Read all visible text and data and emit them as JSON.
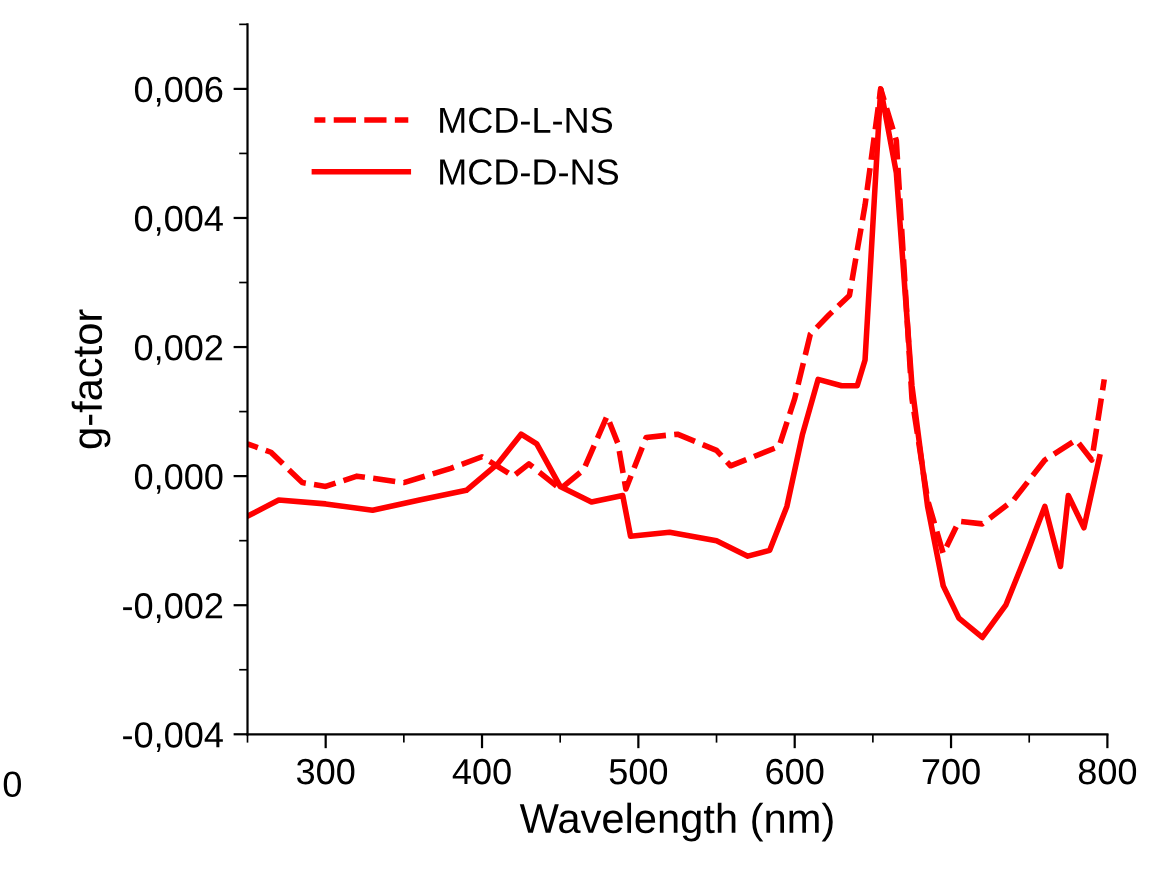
{
  "chart_data": {
    "type": "line",
    "xlabel": "Wavelength (nm)",
    "ylabel": "g-factor",
    "xlim": [
      250,
      800
    ],
    "xticks": [
      300,
      400,
      500,
      600,
      700,
      800
    ],
    "ylim": [
      -0.004,
      0.007
    ],
    "yticks": [
      {
        "value": -0.004,
        "label": "-0,004"
      },
      {
        "value": -0.002,
        "label": "-0,002"
      },
      {
        "value": 0,
        "label": "0,000"
      },
      {
        "value": 0.002,
        "label": "0,002"
      },
      {
        "value": 0.004,
        "label": "0,004"
      },
      {
        "value": 0.006,
        "label": "0,006"
      }
    ],
    "legend": "top left",
    "grid": false,
    "marker": "none",
    "annotations": [
      "0"
    ],
    "series": [
      {
        "name": "MCD-L-NS",
        "color": "#ff0000",
        "line_style": "dashed",
        "x": [
          250,
          265,
          285,
          300,
          320,
          350,
          380,
          400,
          420,
          430,
          450,
          465,
          480,
          487,
          492,
          505,
          525,
          550,
          559,
          590,
          600,
          610,
          622,
          635,
          645,
          655,
          665,
          675,
          685,
          695,
          705,
          720,
          740,
          760,
          780,
          790,
          798
        ],
        "values": [
          0.0005,
          0.00037,
          -0.0001,
          -0.00016,
          0,
          -0.0001,
          0.00012,
          0.0003,
          0,
          0.00019,
          -0.0002,
          0.0001,
          0.00093,
          0.0005,
          -0.0002,
          0.0006,
          0.00065,
          0.0004,
          0.00016,
          0.00046,
          0.0012,
          0.0022,
          0.0025,
          0.0028,
          0.0042,
          0.006,
          0.0052,
          0.0012,
          -0.00037,
          -0.0012,
          -0.0007,
          -0.00074,
          -0.00037,
          0.00025,
          0.00056,
          0.00025,
          0.0015
        ]
      },
      {
        "name": "MCD-D-NS",
        "color": "#ff0000",
        "line_style": "solid",
        "x": [
          250,
          270,
          300,
          330,
          360,
          390,
          410,
          425,
          435,
          450,
          470,
          490,
          495,
          520,
          550,
          570,
          584,
          595,
          605,
          615,
          630,
          640,
          645,
          655,
          665,
          675,
          685,
          695,
          705,
          720,
          735,
          750,
          760,
          770,
          775,
          785,
          795
        ],
        "values": [
          -0.00062,
          -0.00037,
          -0.00043,
          -0.00053,
          -0.00037,
          -0.00022,
          0.00019,
          0.00065,
          0.0005,
          -0.00016,
          -0.0004,
          -0.0003,
          -0.00093,
          -0.00087,
          -0.001,
          -0.00124,
          -0.00115,
          -0.00047,
          0.00065,
          0.0015,
          0.0014,
          0.0014,
          0.0018,
          0.006,
          0.0047,
          0.0014,
          -0.00047,
          -0.0017,
          -0.0022,
          -0.0025,
          -0.002,
          -0.0011,
          -0.00047,
          -0.0014,
          -0.0003,
          -0.0008,
          0.0003
        ]
      }
    ]
  }
}
